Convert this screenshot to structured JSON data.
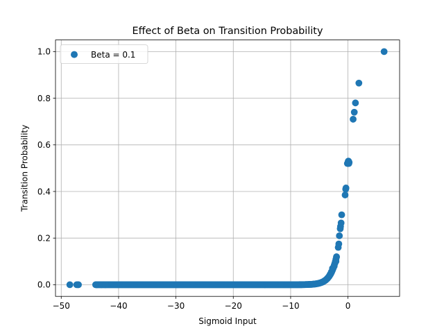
{
  "chart_data": {
    "type": "scatter",
    "title": "Effect of Beta on Transition Probability",
    "xlabel": "Sigmoid Input",
    "ylabel": "Transition Probability",
    "xlim": [
      -51.0,
      9.0
    ],
    "ylim": [
      -0.05,
      1.05
    ],
    "xticks": [
      -50,
      -40,
      -30,
      -20,
      -10,
      0
    ],
    "xtick_labels": [
      "−50",
      "−40",
      "−30",
      "−20",
      "−10",
      "0"
    ],
    "yticks": [
      0.0,
      0.2,
      0.4,
      0.6,
      0.8,
      1.0
    ],
    "ytick_labels": [
      "0.0",
      "0.2",
      "0.4",
      "0.6",
      "0.8",
      "1.0"
    ],
    "grid": true,
    "legend_position": "upper-left",
    "color": "#1f77b4",
    "series": [
      {
        "name": "Beta = 0.1",
        "model": {
          "function": "sigmoid",
          "dense_range": [
            -44,
            -2
          ],
          "dense_count": 420
        },
        "points": [
          [
            -48.5,
            0.0
          ],
          [
            -47.3,
            0.0
          ],
          [
            -47.1,
            0.0
          ],
          [
            -47.0,
            0.0
          ],
          [
            -43.8,
            0.0
          ],
          [
            -43.0,
            0.0
          ],
          [
            -42.3,
            0.0
          ],
          [
            -4.0,
            0.018
          ],
          [
            -3.6,
            0.027
          ],
          [
            -3.3,
            0.036
          ],
          [
            -3.1,
            0.045
          ],
          [
            -2.9,
            0.055
          ],
          [
            -2.7,
            0.07
          ],
          [
            -2.4,
            0.08
          ],
          [
            -2.1,
            0.1
          ],
          [
            -2.0,
            0.12
          ],
          [
            -1.7,
            0.16
          ],
          [
            -1.6,
            0.175
          ],
          [
            -1.5,
            0.21
          ],
          [
            -1.35,
            0.24
          ],
          [
            -1.3,
            0.25
          ],
          [
            -1.2,
            0.265
          ],
          [
            -1.1,
            0.3
          ],
          [
            -0.5,
            0.385
          ],
          [
            -0.4,
            0.41
          ],
          [
            -0.35,
            0.415
          ],
          [
            -0.1,
            0.52
          ],
          [
            0.0,
            0.525
          ],
          [
            0.05,
            0.53
          ],
          [
            0.1,
            0.53
          ],
          [
            0.15,
            0.52
          ],
          [
            0.2,
            0.525
          ],
          [
            0.9,
            0.71
          ],
          [
            1.1,
            0.74
          ],
          [
            1.3,
            0.78
          ],
          [
            1.9,
            0.865
          ],
          [
            6.3,
            1.0
          ]
        ]
      }
    ]
  }
}
